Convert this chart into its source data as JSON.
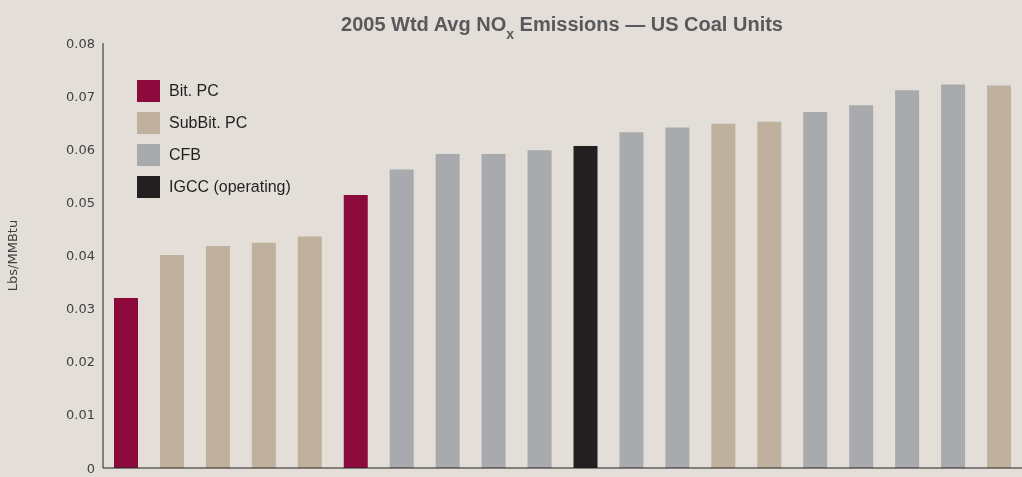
{
  "chart_data": {
    "type": "bar",
    "title": "2005 Wtd Avg NO$_{x}$ Emissions — US Coal Units",
    "ylabel": "Lbs/MMBtu",
    "categories": [
      null,
      null,
      null,
      null,
      null,
      null,
      null,
      null,
      null,
      null,
      null,
      null,
      null,
      null,
      null,
      null,
      null,
      null,
      null,
      null
    ],
    "series": [
      {
        "name": "Bit. PC",
        "color": "#8c0a3c",
        "values": [
          0.032,
          null,
          null,
          null,
          null,
          0.0514,
          null,
          null,
          null,
          null,
          null,
          null,
          null,
          null,
          null,
          null,
          null,
          null,
          null,
          null
        ]
      },
      {
        "name": "SubBit. PC",
        "color": "#bfb19d",
        "values": [
          null,
          0.0401,
          0.0418,
          0.0424,
          0.0436,
          null,
          null,
          null,
          null,
          null,
          null,
          null,
          null,
          0.0648,
          0.0652,
          null,
          null,
          null,
          null,
          0.072
        ]
      },
      {
        "name": "CFB",
        "color": "#a8aaad",
        "values": [
          null,
          null,
          null,
          null,
          null,
          null,
          0.0562,
          0.0591,
          0.0591,
          0.0598,
          null,
          0.0632,
          0.0641,
          null,
          null,
          0.067,
          0.0683,
          0.0711,
          0.0722,
          null
        ]
      },
      {
        "name": "IGCC (operating)",
        "color": "#231f20",
        "values": [
          null,
          null,
          null,
          null,
          null,
          null,
          null,
          null,
          null,
          null,
          0.0606,
          null,
          null,
          null,
          null,
          null,
          null,
          null,
          null,
          null
        ]
      }
    ],
    "ylim": [
      0,
      0.08
    ],
    "yticks": [
      0,
      0.01,
      0.02,
      0.03,
      0.04,
      0.05,
      0.06,
      0.07,
      0.08
    ],
    "grid": false,
    "legend": "top left"
  }
}
